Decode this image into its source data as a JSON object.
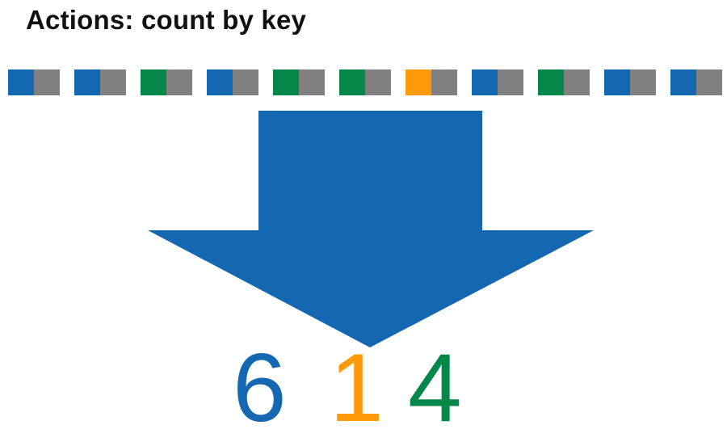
{
  "title": "Actions: count by key",
  "colors": {
    "blue": "#1468b2",
    "orange": "#ff9a0a",
    "green": "#06874a",
    "gray": "#808080",
    "arrow": "#1468b2"
  },
  "pairs": [
    {
      "key": "blue"
    },
    {
      "key": "blue"
    },
    {
      "key": "green"
    },
    {
      "key": "blue"
    },
    {
      "key": "green"
    },
    {
      "key": "green"
    },
    {
      "key": "orange"
    },
    {
      "key": "blue"
    },
    {
      "key": "green"
    },
    {
      "key": "blue"
    },
    {
      "key": "blue"
    }
  ],
  "counts": [
    {
      "key": "blue",
      "value": "6"
    },
    {
      "key": "orange",
      "value": "1"
    },
    {
      "key": "green",
      "value": "4"
    }
  ]
}
